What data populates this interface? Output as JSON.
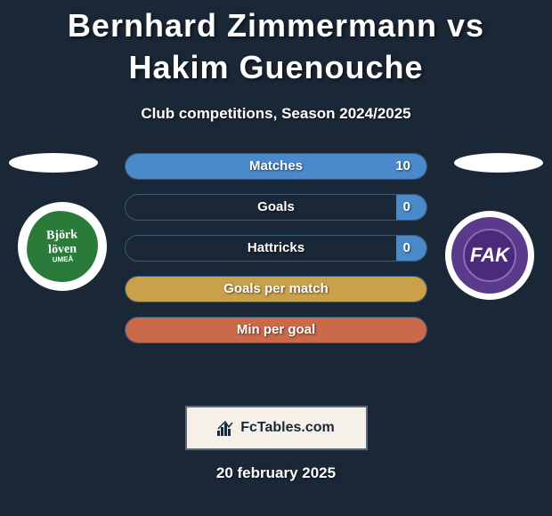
{
  "header": {
    "title": "Bernhard Zimmermann vs Hakim Guenouche",
    "subtitle": "Club competitions, Season 2024/2025"
  },
  "logos": {
    "left": {
      "name": "bjorkloven-logo",
      "text_line1": "Björk",
      "text_line2": "löven",
      "text_line3": "UMEÅ",
      "bg_color": "#2a7a3a"
    },
    "right": {
      "name": "austria-wien-logo",
      "text": "FAK",
      "bg_color": "#5a3a8a"
    }
  },
  "stats": {
    "rows": [
      {
        "label": "Matches",
        "value": "10",
        "fill_pct": 100,
        "fill_color": "#4a8aca"
      },
      {
        "label": "Goals",
        "value": "0",
        "fill_pct": 10,
        "fill_color": "#4a8aca"
      },
      {
        "label": "Hattricks",
        "value": "0",
        "fill_pct": 10,
        "fill_color": "#4a8aca"
      },
      {
        "label": "Goals per match",
        "value": "",
        "fill_pct": 100,
        "fill_color": "#caa04a"
      },
      {
        "label": "Min per goal",
        "value": "",
        "fill_pct": 100,
        "fill_color": "#ca6a4a"
      }
    ],
    "border_color": "#3a5a7a"
  },
  "brand": {
    "label": "FcTables.com",
    "box_bg": "#f5f0e8",
    "box_border": "#5a6a7a"
  },
  "date": {
    "text": "20 february 2025"
  },
  "colors": {
    "page_bg": "#1a2736",
    "text": "#ffffff"
  }
}
